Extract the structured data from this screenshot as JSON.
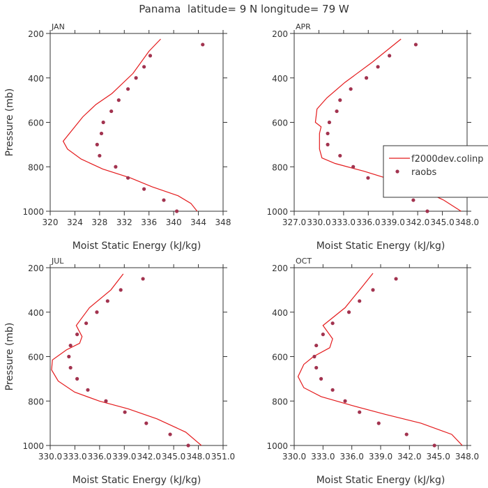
{
  "figure": {
    "title": "Panama  latitude= 9 N longitude= 79 W"
  },
  "chart_data": [
    {
      "type": "scatter",
      "panel_label": "JAN",
      "xlabel": "Moist Static Energy (kJ/kg)",
      "ylabel": "Pressure (mb)",
      "xlim": [
        320,
        348
      ],
      "ylim": [
        1000,
        200
      ],
      "x_ticks": [
        320,
        324,
        328,
        332,
        336,
        340,
        344,
        348
      ],
      "x_tick_labels": [
        "320",
        "324",
        "328",
        "332",
        "336",
        "340",
        "344",
        "348"
      ],
      "y_ticks": [
        200,
        400,
        600,
        800,
        1000
      ],
      "y_tick_labels": [
        "200",
        "400",
        "600",
        "800",
        "1000"
      ],
      "series": [
        {
          "kind": "line",
          "color": "#e41a1c",
          "points": [
            [
              337.9,
              225
            ],
            [
              336.0,
              280
            ],
            [
              333.4,
              380
            ],
            [
              330.0,
              470
            ],
            [
              327.4,
              520
            ],
            [
              325.3,
              575
            ],
            [
              322.1,
              685
            ],
            [
              322.8,
              720
            ],
            [
              325.0,
              765
            ],
            [
              328.5,
              810
            ],
            [
              333.0,
              850
            ],
            [
              336.5,
              890
            ],
            [
              340.7,
              930
            ],
            [
              342.8,
              965
            ],
            [
              343.8,
              1000
            ]
          ]
        },
        {
          "kind": "scatter",
          "color": "#a2334f",
          "points": [
            [
              344.7,
              250
            ],
            [
              336.2,
              300
            ],
            [
              335.2,
              350
            ],
            [
              333.9,
              400
            ],
            [
              332.6,
              450
            ],
            [
              331.1,
              500
            ],
            [
              329.9,
              550
            ],
            [
              328.6,
              600
            ],
            [
              328.3,
              650
            ],
            [
              327.6,
              700
            ],
            [
              328.0,
              750
            ],
            [
              330.6,
              800
            ],
            [
              332.6,
              850
            ],
            [
              335.2,
              900
            ],
            [
              338.4,
              950
            ],
            [
              340.5,
              1000
            ]
          ]
        }
      ]
    },
    {
      "type": "scatter",
      "panel_label": "APR",
      "xlabel": "Moist Static Energy (kJ/kg)",
      "ylabel": "",
      "xlim": [
        327.03,
        348.03
      ],
      "ylim": [
        1000,
        200
      ],
      "x_ticks": [
        327.03,
        330.03,
        333.03,
        336.03,
        339.03,
        342.03,
        345.03,
        348.03
      ],
      "x_tick_labels": [
        "327.0",
        "330.0",
        "333.0",
        "336.0",
        "339.0",
        "342.0",
        "345.0",
        "348.0"
      ],
      "y_ticks": [
        200,
        400,
        600,
        800,
        1000
      ],
      "y_tick_labels": [
        "200",
        "400",
        "600",
        "800",
        "1000"
      ],
      "legend": {
        "placement": "right",
        "entries": [
          "f2000dev.colinp",
          "raobs"
        ]
      },
      "series": [
        {
          "name": "f2000dev.colinp",
          "kind": "line",
          "color": "#e41a1c",
          "points": [
            [
              340.0,
              225
            ],
            [
              336.5,
              330
            ],
            [
              333.2,
              420
            ],
            [
              331.0,
              490
            ],
            [
              329.8,
              540
            ],
            [
              329.6,
              600
            ],
            [
              330.3,
              620
            ],
            [
              330.1,
              650
            ],
            [
              330.1,
              720
            ],
            [
              330.4,
              760
            ],
            [
              332.0,
              785
            ],
            [
              335.5,
              820
            ],
            [
              339.0,
              860
            ],
            [
              342.3,
              900
            ],
            [
              345.2,
              950
            ],
            [
              347.3,
              1000
            ]
          ]
        },
        {
          "name": "raobs",
          "kind": "scatter",
          "color": "#a2334f",
          "points": [
            [
              341.8,
              250
            ],
            [
              338.6,
              300
            ],
            [
              337.2,
              350
            ],
            [
              335.8,
              400
            ],
            [
              333.9,
              450
            ],
            [
              332.6,
              500
            ],
            [
              332.2,
              550
            ],
            [
              331.3,
              600
            ],
            [
              331.1,
              650
            ],
            [
              331.1,
              700
            ],
            [
              332.6,
              750
            ],
            [
              334.2,
              800
            ],
            [
              336.0,
              850
            ],
            [
              338.5,
              900
            ],
            [
              341.5,
              950
            ],
            [
              343.2,
              1000
            ]
          ]
        }
      ]
    },
    {
      "type": "scatter",
      "panel_label": "JUL",
      "xlabel": "Moist Static Energy (kJ/kg)",
      "ylabel": "Pressure (mb)",
      "xlim": [
        330.03,
        351.03
      ],
      "ylim": [
        1000,
        200
      ],
      "x_ticks": [
        330.03,
        333.03,
        336.03,
        339.03,
        342.03,
        345.03,
        348.03,
        351.03
      ],
      "x_tick_labels": [
        "330.0",
        "333.0",
        "336.0",
        "339.0",
        "342.0",
        "345.0",
        "348.0",
        "351.0"
      ],
      "y_ticks": [
        200,
        400,
        600,
        800,
        1000
      ],
      "y_tick_labels": [
        "200",
        "400",
        "600",
        "800",
        "1000"
      ],
      "series": [
        {
          "kind": "line",
          "color": "#e41a1c",
          "points": [
            [
              338.9,
              228
            ],
            [
              337.4,
              300
            ],
            [
              334.8,
              380
            ],
            [
              333.2,
              460
            ],
            [
              333.9,
              510
            ],
            [
              333.6,
              540
            ],
            [
              332.0,
              570
            ],
            [
              330.3,
              615
            ],
            [
              330.2,
              660
            ],
            [
              331.0,
              710
            ],
            [
              333.0,
              760
            ],
            [
              336.0,
              800
            ],
            [
              339.5,
              835
            ],
            [
              343.0,
              880
            ],
            [
              346.5,
              940
            ],
            [
              348.4,
              1000
            ]
          ]
        },
        {
          "kind": "scatter",
          "color": "#a2334f",
          "points": [
            [
              341.3,
              250
            ],
            [
              338.6,
              300
            ],
            [
              337.0,
              350
            ],
            [
              335.7,
              400
            ],
            [
              334.4,
              450
            ],
            [
              333.3,
              500
            ],
            [
              332.5,
              550
            ],
            [
              332.3,
              600
            ],
            [
              332.5,
              650
            ],
            [
              333.3,
              700
            ],
            [
              334.6,
              750
            ],
            [
              336.8,
              800
            ],
            [
              339.1,
              850
            ],
            [
              341.7,
              900
            ],
            [
              344.6,
              950
            ],
            [
              346.8,
              1000
            ]
          ]
        }
      ]
    },
    {
      "type": "scatter",
      "panel_label": "OCT",
      "xlabel": "Moist Static Energy (kJ/kg)",
      "ylabel": "",
      "xlim": [
        330,
        348
      ],
      "ylim": [
        1000,
        200
      ],
      "x_ticks": [
        330,
        333,
        336,
        339,
        342,
        345,
        348
      ],
      "x_tick_labels": [
        "330.0",
        "333.0",
        "336.0",
        "339.0",
        "342.0",
        "345.0",
        "348.0"
      ],
      "y_ticks": [
        200,
        400,
        600,
        800,
        1000
      ],
      "y_tick_labels": [
        "200",
        "400",
        "600",
        "800",
        "1000"
      ],
      "series": [
        {
          "kind": "line",
          "color": "#e41a1c",
          "points": [
            [
              338.2,
              225
            ],
            [
              337.0,
              290
            ],
            [
              335.3,
              380
            ],
            [
              333.0,
              460
            ],
            [
              334.0,
              520
            ],
            [
              333.7,
              560
            ],
            [
              332.0,
              600
            ],
            [
              331.0,
              635
            ],
            [
              330.4,
              690
            ],
            [
              331.0,
              740
            ],
            [
              332.8,
              780
            ],
            [
              336.0,
              820
            ],
            [
              339.5,
              860
            ],
            [
              343.2,
              900
            ],
            [
              346.4,
              950
            ],
            [
              347.5,
              1000
            ]
          ]
        },
        {
          "kind": "scatter",
          "color": "#a2334f",
          "points": [
            [
              340.6,
              250
            ],
            [
              338.2,
              300
            ],
            [
              336.8,
              350
            ],
            [
              335.7,
              400
            ],
            [
              334.0,
              450
            ],
            [
              333.0,
              500
            ],
            [
              332.3,
              550
            ],
            [
              332.1,
              600
            ],
            [
              332.3,
              650
            ],
            [
              332.8,
              700
            ],
            [
              334.0,
              750
            ],
            [
              335.3,
              800
            ],
            [
              336.8,
              850
            ],
            [
              338.8,
              900
            ],
            [
              341.7,
              950
            ],
            [
              344.6,
              1000
            ]
          ]
        }
      ]
    }
  ]
}
